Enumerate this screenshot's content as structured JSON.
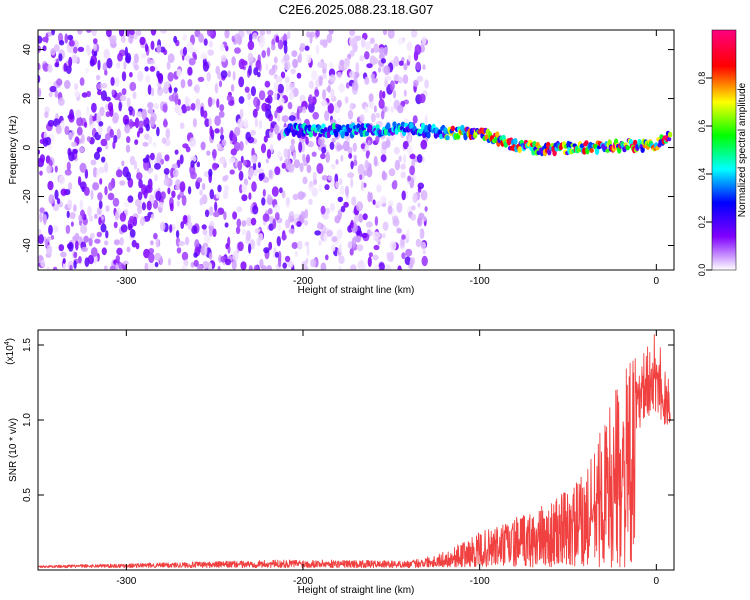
{
  "title": "C2E6.2025.088.23.18.G07",
  "chart_data": [
    {
      "type": "heatmap",
      "xlabel": "Height of straight line (km)",
      "ylabel": "Frequency (Hz)",
      "xlim": [
        -350,
        10
      ],
      "ylim": [
        -50,
        48
      ],
      "xticks": [
        -300,
        -200,
        -100,
        0
      ],
      "yticks": [
        -40,
        -20,
        0,
        20,
        40
      ],
      "colorbar": {
        "label": "Normalized spectral amplitude",
        "range": [
          0.0,
          1.0
        ],
        "ticks": [
          0.0,
          0.2,
          0.4,
          0.6,
          0.8
        ],
        "colormap": [
          "#ffffff",
          "#8000ff",
          "#0000ff",
          "#00ffff",
          "#00ff00",
          "#ffff00",
          "#ff0000",
          "#ff0080"
        ]
      },
      "signal_track": {
        "x": [
          -210,
          -200,
          -180,
          -160,
          -140,
          -120,
          -100,
          -80,
          -60,
          -40,
          -20,
          0,
          8
        ],
        "y": [
          7,
          7,
          7,
          7,
          8,
          6,
          6,
          1,
          -1,
          0,
          1,
          1,
          5
        ]
      },
      "noise_extent_x": [
        -350,
        -130
      ]
    },
    {
      "type": "line",
      "xlabel": "Height of straight line (km)",
      "ylabel": "SNR (10 * v/v)",
      "yscale_label": "(x10",
      "yscale_exp": "4",
      "xlim": [
        -350,
        10
      ],
      "ylim": [
        0,
        16000
      ],
      "xticks": [
        -300,
        -200,
        -100,
        0
      ],
      "yticks": [
        5000,
        10000,
        15000
      ],
      "ytick_labels": [
        "0.5",
        "1.0",
        "1.5"
      ],
      "color": "#f04040",
      "envelope": {
        "x": [
          -350,
          -200,
          -140,
          -120,
          -100,
          -80,
          -60,
          -40,
          -30,
          -20,
          -10,
          0,
          8
        ],
        "y": [
          300,
          700,
          600,
          1200,
          2500,
          3500,
          4500,
          6500,
          10000,
          13000,
          14500,
          16000,
          14000
        ]
      }
    }
  ]
}
